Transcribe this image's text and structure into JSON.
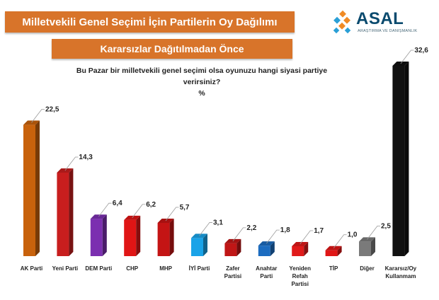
{
  "header": {
    "title": "Milletvekili Genel Seçimi İçin Partilerin Oy Dağılımı",
    "subtitle": "Kararsızlar Dağıtılmadan Önce"
  },
  "logo": {
    "name": "ASAL",
    "tagline": "ARAŞTIRMA VE DANIŞMANLIK"
  },
  "chart_data": {
    "type": "bar",
    "title": "Bu Pazar bir milletvekili genel seçimi olsa oyunuzu hangi siyasi partiye verirsiniz?",
    "unit": "%",
    "categories": [
      [
        "AK Parti"
      ],
      [
        "Yeni Parti"
      ],
      [
        "DEM Parti"
      ],
      [
        "CHP"
      ],
      [
        "MHP"
      ],
      [
        "İYİ Parti"
      ],
      [
        "Zafer",
        "Partisi"
      ],
      [
        "Anahtar",
        "Parti"
      ],
      [
        "Yeniden",
        "Refah",
        "Partisi"
      ],
      [
        "TİP"
      ],
      [
        "Diğer"
      ],
      [
        "Kararsız/Oy",
        "Kullanmam"
      ]
    ],
    "values": [
      22.5,
      14.3,
      6.4,
      6.2,
      5.7,
      3.1,
      2.2,
      1.8,
      1.7,
      1.0,
      2.5,
      32.6
    ],
    "value_labels": [
      "22,5",
      "14,3",
      "6,4",
      "6,2",
      "5,7",
      "3,1",
      "2,2",
      "1,8",
      "1,7",
      "1,0",
      "2,5",
      "32,6"
    ],
    "colors": [
      "#c8620c",
      "#c81e1e",
      "#7b2fb0",
      "#e01515",
      "#c41414",
      "#1aa3e8",
      "#c01616",
      "#1c6cc0",
      "#e01a1a",
      "#e01616",
      "#7a7a7a",
      "#111111"
    ],
    "ylim": [
      0,
      32.6
    ],
    "grid": false,
    "legend": "none"
  }
}
